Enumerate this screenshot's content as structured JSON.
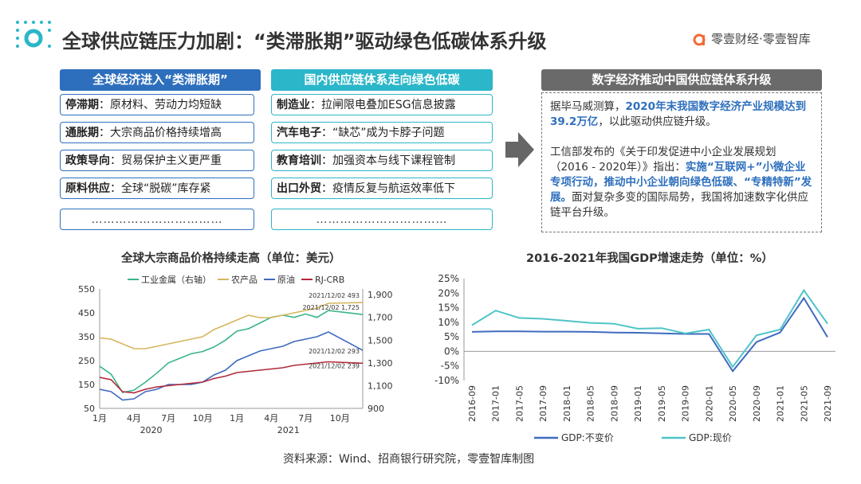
{
  "header": {
    "title": "全球供应链压力加剧：“类滞胀期”驱动绿色低碳体系升级",
    "brand": "零壹财经·零壹智库"
  },
  "col1": {
    "title": "全球经济进入“类滞胀期”",
    "items": [
      {
        "key": "停滞期",
        "text": "：原材料、劳动力均短缺"
      },
      {
        "key": "通胀期",
        "text": "：大宗商品价格持续增高"
      },
      {
        "key": "政策导向",
        "text": "：贸易保护主义更严重"
      },
      {
        "key": "原料供应",
        "text": "：全球“脱碳”库存紧"
      }
    ],
    "ellipsis": "……………………………"
  },
  "col2": {
    "title": "国内供应链体系走向绿色低碳",
    "items": [
      {
        "key": "制造业",
        "text": "：拉闸限电叠加ESG信息披露"
      },
      {
        "key": "汽车电子",
        "text": "：“缺芯”成为卡脖子问题"
      },
      {
        "key": "教育培训",
        "text": "：加强资本与线下课程管制"
      },
      {
        "key": "出口外贸",
        "text": "：疫情反复与航运效率低下"
      }
    ],
    "ellipsis": "……………………………"
  },
  "col3": {
    "title": "数字经济推动中国供应链体系升级",
    "p1_a": "据毕马威测算，",
    "p1_hl": "2020年末我国数字经济产业规模达到39.2万亿",
    "p1_b": "，以此驱动供应链升级。",
    "p2_a": "工信部发布的《关于印发促进中小企业发展规划（2016 - 2020年）》指出：",
    "p2_hl": "实施“互联网+”小微企业专项行动，推动中小企业朝向绿色低碳、“专精特新”发展。",
    "p2_b": "面对复杂多变的国际局势，我国将加速数字化供应链平台升级。"
  },
  "source": "资料来源：Wind、招商银行研究院，零壹智库制图",
  "colors": {
    "blue": "#2e6fbd",
    "teal": "#2bb6c9",
    "gray": "#6a6a6a"
  },
  "chart_data": [
    {
      "type": "line",
      "title": "全球大宗商品价格持续走高（单位：美元）",
      "legend": [
        "工业金属（右轴）",
        "农产品",
        "原油",
        "RJ-CRB"
      ],
      "colors": [
        "#3bb48a",
        "#d6b65e",
        "#3f6bbf",
        "#b02a3a"
      ],
      "x_ticks": [
        "1月",
        "4月",
        "7月",
        "10月",
        "1月",
        "4月",
        "7月",
        "10月"
      ],
      "x_years": [
        "2020",
        "2021"
      ],
      "y_left_ticks": [
        "50",
        "150",
        "250",
        "350",
        "450",
        "550"
      ],
      "y_right_ticks": [
        "900",
        "1,100",
        "1,300",
        "1,500",
        "1,700",
        "1,900"
      ],
      "ylim_left": [
        50,
        550
      ],
      "ylim_right": [
        900,
        1950
      ],
      "x_months": [
        0,
        1,
        2,
        3,
        4,
        5,
        6,
        7,
        8,
        9,
        10,
        11,
        12,
        13,
        14,
        15,
        16,
        17,
        18,
        19,
        20,
        23
      ],
      "series": [
        {
          "name": "工业金属（右轴）",
          "axis": "right",
          "values": [
            1270,
            1200,
            1040,
            1060,
            1130,
            1210,
            1300,
            1340,
            1380,
            1400,
            1440,
            1500,
            1580,
            1600,
            1650,
            1700,
            1720,
            1700,
            1730,
            1700,
            1760,
            1725
          ]
        },
        {
          "name": "农产品",
          "axis": "left",
          "values": [
            345,
            340,
            320,
            300,
            300,
            310,
            320,
            330,
            340,
            350,
            380,
            400,
            420,
            440,
            430,
            430,
            440,
            450,
            460,
            470,
            490,
            493
          ]
        },
        {
          "name": "原油",
          "axis": "left",
          "values": [
            130,
            120,
            85,
            90,
            120,
            130,
            150,
            150,
            150,
            160,
            190,
            210,
            250,
            270,
            290,
            300,
            310,
            330,
            340,
            350,
            370,
            293
          ]
        },
        {
          "name": "RJ-CRB",
          "axis": "left",
          "values": [
            180,
            170,
            120,
            115,
            130,
            140,
            145,
            150,
            155,
            160,
            175,
            185,
            200,
            205,
            210,
            215,
            220,
            230,
            235,
            240,
            245,
            239
          ]
        }
      ],
      "annotations": [
        "2021/12/02 493",
        "2021/12/02 1,725",
        "2021/12/02 293",
        "2021/12/02 239"
      ]
    },
    {
      "type": "line",
      "title": "2016-2021年我国GDP增速走势（单位：%）",
      "categories": [
        "2016-09",
        "2017-01",
        "2017-05",
        "2017-09",
        "2018-01",
        "2018-05",
        "2018-09",
        "2019-01",
        "2019-05",
        "2019-09",
        "2020-01",
        "2020-05",
        "2020-09",
        "2021-01",
        "2021-05",
        "2021-09"
      ],
      "y_ticks": [
        "25%",
        "20%",
        "15%",
        "10%",
        "5%",
        "0%",
        "-5%",
        "-10%"
      ],
      "ylim": [
        -10,
        25
      ],
      "series": [
        {
          "name": "GDP:不变价",
          "color": "#3f6bbf",
          "values": [
            6.7,
            6.9,
            6.9,
            6.8,
            6.8,
            6.7,
            6.5,
            6.4,
            6.2,
            6.0,
            6.0,
            -6.8,
            3.2,
            6.5,
            18.3,
            4.9
          ]
        },
        {
          "name": "GDP:现价",
          "color": "#4fc3c8",
          "values": [
            9.0,
            14.0,
            11.5,
            11.2,
            10.5,
            9.8,
            9.5,
            7.8,
            8.0,
            6.2,
            7.5,
            -5.3,
            5.5,
            7.5,
            21.0,
            9.5
          ]
        }
      ]
    }
  ]
}
